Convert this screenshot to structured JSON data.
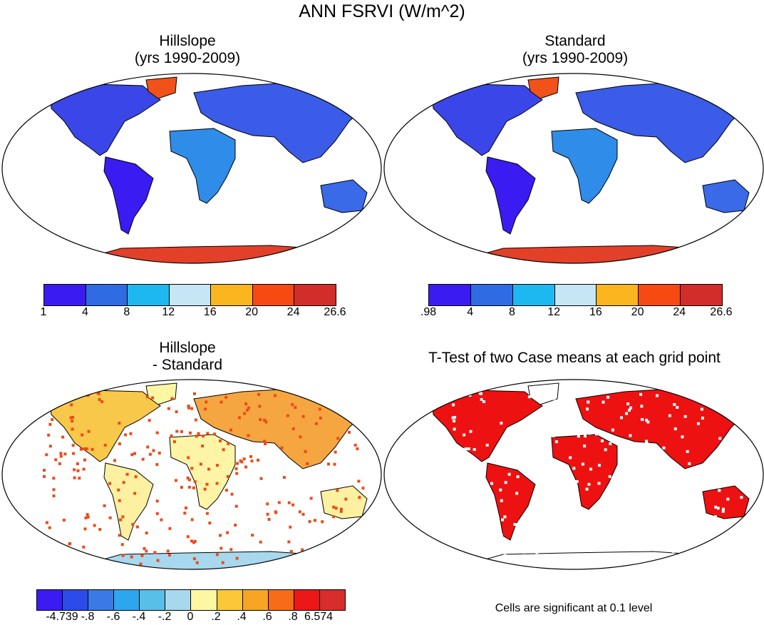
{
  "title": "ANN FSRVI (W/m^2)",
  "panels": {
    "hillslope": {
      "title_line1": "Hillslope",
      "title_line2": "(yrs 1990-2009)",
      "colorbar": {
        "labels": [
          "1",
          "4",
          "8",
          "12",
          "16",
          "20",
          "24",
          "26.6"
        ],
        "colors": [
          "#3a1cf2",
          "#2f6ce4",
          "#1eb8f0",
          "#c6e6f6",
          "#fbb51f",
          "#f64a12",
          "#d22d29"
        ]
      }
    },
    "standard": {
      "title_line1": "Standard",
      "title_line2": "(yrs 1990-2009)",
      "colorbar": {
        "labels": [
          ".98",
          "4",
          "8",
          "12",
          "16",
          "20",
          "24",
          "26.6"
        ],
        "colors": [
          "#3a1cf2",
          "#2f6ce4",
          "#1eb8f0",
          "#c6e6f6",
          "#fbb51f",
          "#f64a12",
          "#d22d29"
        ]
      }
    },
    "difference": {
      "title_line1": "Hillslope",
      "title_line2": "- Standard",
      "colorbar": {
        "labels": [
          "-4.739",
          "-.8",
          "-.6",
          "-.4",
          "-.2",
          "0",
          ".2",
          ".4",
          ".6",
          ".8",
          "6.574"
        ],
        "colors": [
          "#3a1cf2",
          "#2b4ce8",
          "#3a7ae6",
          "#2ea6ee",
          "#58bfe9",
          "#a7d8ee",
          "#fdf7a3",
          "#fbc83a",
          "#f8a524",
          "#f66c18",
          "#ec1717",
          "#d72e2b"
        ]
      }
    },
    "ttest": {
      "title": "T-Test of two Case means at each grid point",
      "note": "Cells are significant at 0.1 level",
      "significant_color": "#ee1111"
    }
  }
}
